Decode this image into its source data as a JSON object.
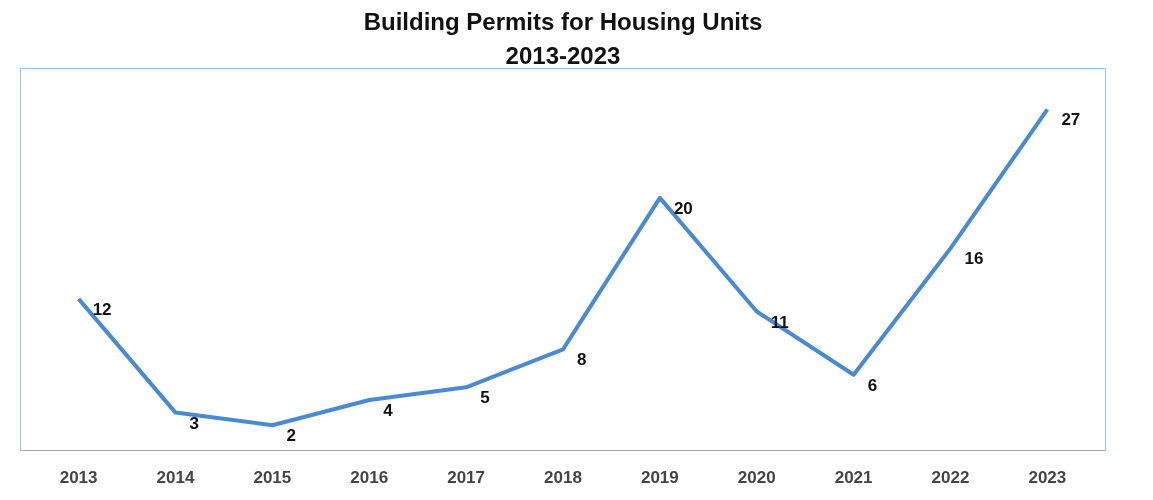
{
  "chart_data": {
    "type": "line",
    "title": "Building Permits for Housing Units",
    "subtitle": "2013-2023",
    "categories": [
      "2013",
      "2014",
      "2015",
      "2016",
      "2017",
      "2018",
      "2019",
      "2020",
      "2021",
      "2022",
      "2023"
    ],
    "series": [
      {
        "color": "#4a8ad4",
        "values": [
          12,
          3,
          2,
          4,
          5,
          8,
          20,
          11,
          6,
          16,
          27
        ]
      }
    ],
    "data_labels": true,
    "line_style": "solid"
  }
}
